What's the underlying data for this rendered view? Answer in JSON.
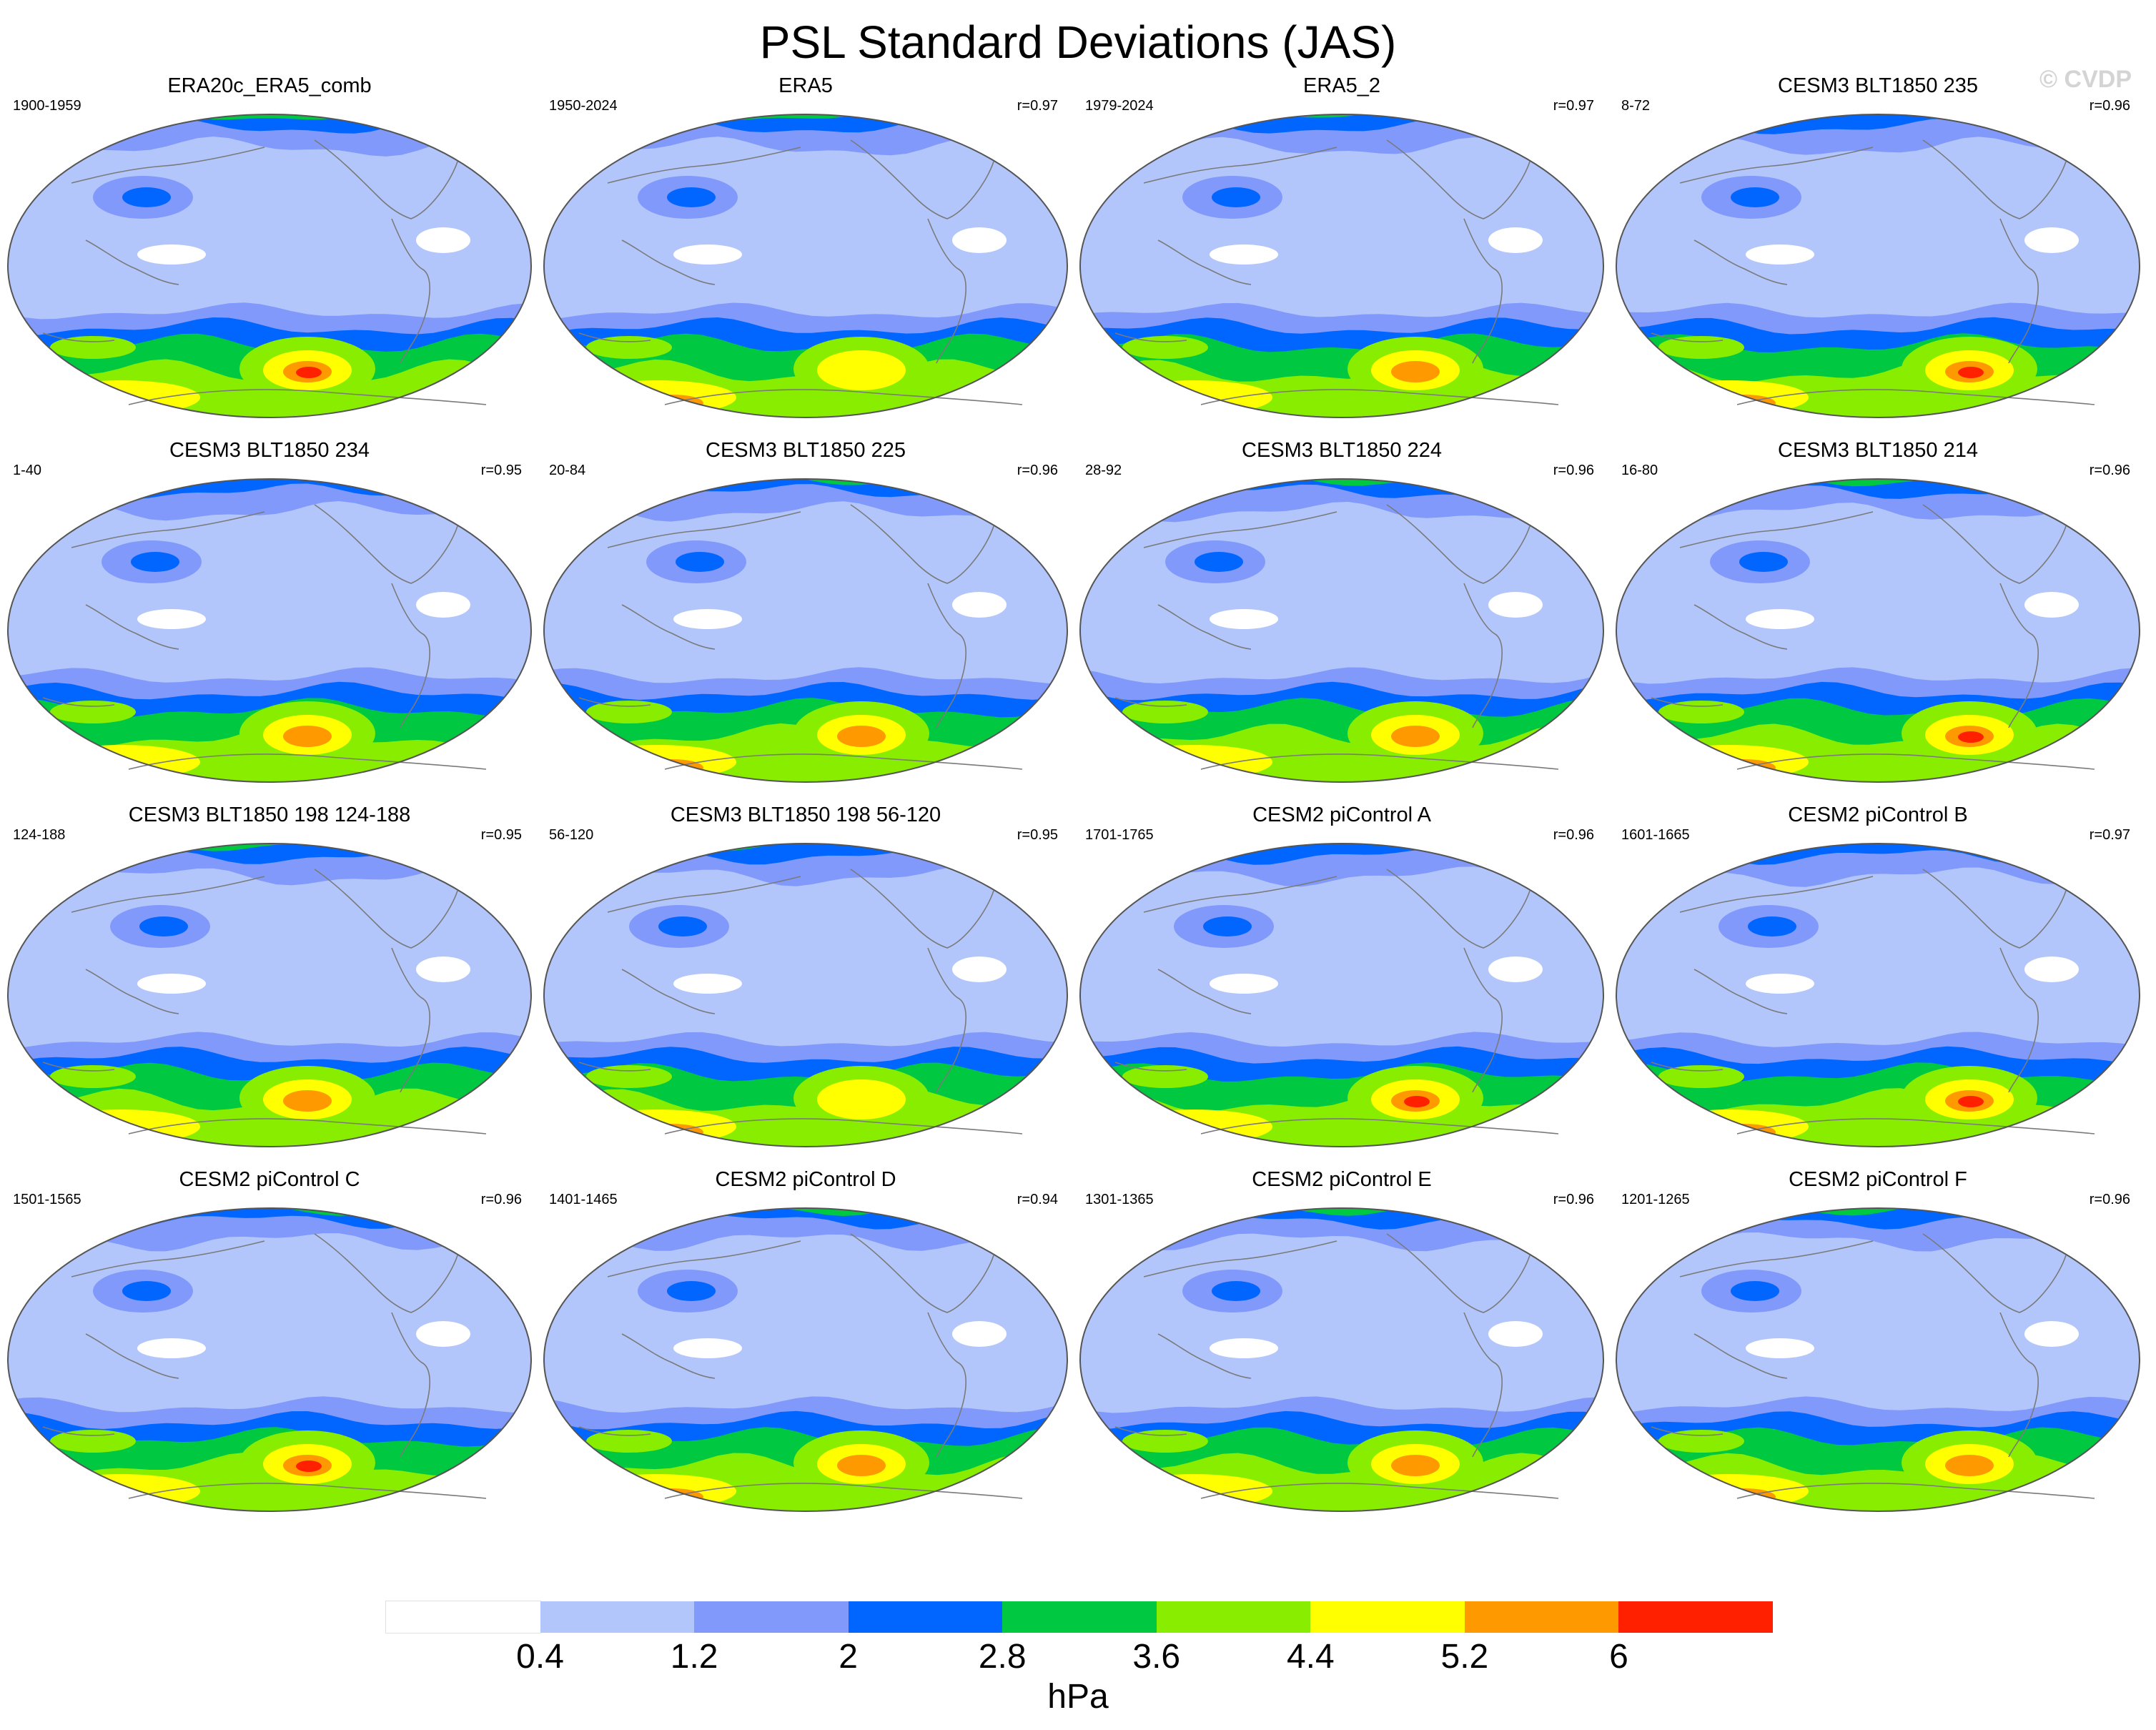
{
  "title": "PSL Standard Deviations (JAS)",
  "watermark": "© CVDP",
  "colors": {
    "levels": [
      "#ffffff",
      "#b3c6fb",
      "#8099fb",
      "#0066ff",
      "#00c840",
      "#89ed00",
      "#ffff00",
      "#ff9900",
      "#ff2000"
    ],
    "coast": "#7a7a7a"
  },
  "panels": [
    {
      "title": "ERA20c_ERA5_comb",
      "years": "1900-1959",
      "r": "",
      "max_level": 8
    },
    {
      "title": "ERA5",
      "years": "1950-2024",
      "r": "r=0.97",
      "max_level": 6
    },
    {
      "title": "ERA5_2",
      "years": "1979-2024",
      "r": "r=0.97",
      "max_level": 7
    },
    {
      "title": "CESM3 BLT1850 235",
      "years": "8-72",
      "r": "r=0.96",
      "max_level": 8
    },
    {
      "title": "CESM3 BLT1850 234",
      "years": "1-40",
      "r": "r=0.95",
      "max_level": 7
    },
    {
      "title": "CESM3 BLT1850 225",
      "years": "20-84",
      "r": "r=0.96",
      "max_level": 7
    },
    {
      "title": "CESM3 BLT1850 224",
      "years": "28-92",
      "r": "r=0.96",
      "max_level": 7
    },
    {
      "title": "CESM3 BLT1850 214",
      "years": "16-80",
      "r": "r=0.96",
      "max_level": 8
    },
    {
      "title": "CESM3 BLT1850 198 124-188",
      "years": "124-188",
      "r": "r=0.95",
      "max_level": 7
    },
    {
      "title": "CESM3 BLT1850 198 56-120",
      "years": "56-120",
      "r": "r=0.95",
      "max_level": 6
    },
    {
      "title": "CESM2 piControl A",
      "years": "1701-1765",
      "r": "r=0.96",
      "max_level": 8
    },
    {
      "title": "CESM2 piControl B",
      "years": "1601-1665",
      "r": "r=0.97",
      "max_level": 8
    },
    {
      "title": "CESM2 piControl C",
      "years": "1501-1565",
      "r": "r=0.96",
      "max_level": 8
    },
    {
      "title": "CESM2 piControl D",
      "years": "1401-1465",
      "r": "r=0.94",
      "max_level": 7
    },
    {
      "title": "CESM2 piControl E",
      "years": "1301-1365",
      "r": "r=0.96",
      "max_level": 7
    },
    {
      "title": "CESM2 piControl F",
      "years": "1201-1265",
      "r": "r=0.96",
      "max_level": 7
    }
  ],
  "colorbar": {
    "labels": [
      "0.4",
      "1.2",
      "2",
      "2.8",
      "3.6",
      "4.4",
      "5.2",
      "6"
    ],
    "units": "hPa"
  }
}
